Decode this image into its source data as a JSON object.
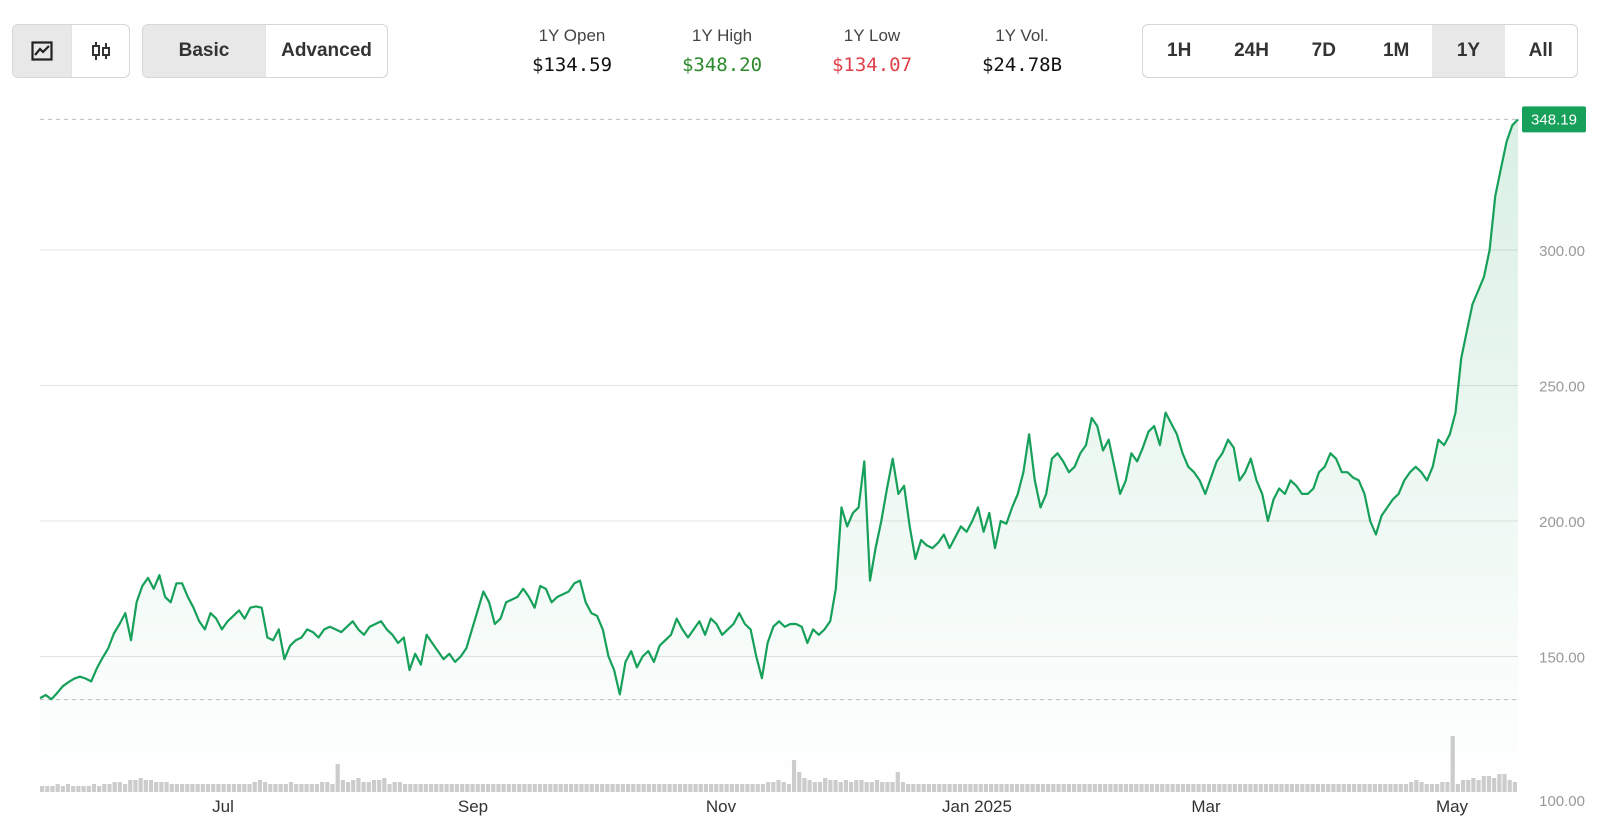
{
  "toolbar": {
    "chart_types": [
      {
        "name": "line-chart",
        "icon": "line-chart-icon",
        "active": true
      },
      {
        "name": "candlestick",
        "icon": "candlestick-icon",
        "active": false
      }
    ],
    "modes": {
      "basic": "Basic",
      "advanced": "Advanced",
      "active": "Basic"
    },
    "ranges": [
      "1H",
      "24H",
      "7D",
      "1M",
      "1Y",
      "All"
    ],
    "active_range": "1Y"
  },
  "stats": {
    "open": {
      "label": "1Y Open",
      "value": "$134.59"
    },
    "high": {
      "label": "1Y High",
      "value": "$348.20",
      "color": "#2a8a2a"
    },
    "low": {
      "label": "1Y Low",
      "value": "$134.07",
      "color": "#e0424a"
    },
    "vol": {
      "label": "1Y Vol.",
      "value": "$24.78B"
    }
  },
  "colors": {
    "line": "#16a05a",
    "area_top": "#16a05a",
    "volume": "#cccccc",
    "grid": "#e3e3e3",
    "price_tag": "#16a05a"
  },
  "chart_data": {
    "type": "line",
    "x_ticks": [
      "Jul",
      "Sep",
      "Nov",
      "Jan 2025",
      "Mar",
      "May"
    ],
    "y_ticks": [
      "100.00",
      "150.00",
      "200.00",
      "250.00",
      "300.00"
    ],
    "ylim": [
      100,
      350
    ],
    "current_price": "348.19",
    "ref_lines": [
      348.2,
      134.07
    ],
    "series": [
      {
        "values": [
          134.6,
          135.8,
          134.2,
          136.5,
          139.0,
          140.5,
          141.8,
          142.6,
          141.9,
          140.8,
          145.6,
          149.5,
          153.0,
          158.5,
          162.0,
          166.0,
          156.0,
          170.0,
          176.0,
          179.0,
          175.0,
          180.0,
          172.0,
          170.0,
          177.0,
          177.0,
          172.0,
          168.0,
          163.0,
          160.0,
          166.0,
          164.0,
          160.0,
          163.0,
          165.0,
          167.0,
          164.0,
          168.0,
          168.5,
          168.0,
          157.0,
          156.0,
          160.0,
          149.0,
          154.0,
          156.0,
          157.0,
          160.0,
          159.0,
          157.0,
          160.0,
          161.0,
          160.0,
          159.0,
          161.0,
          163.0,
          160.0,
          158.0,
          161.0,
          162.0,
          163.0,
          160.0,
          158.0,
          155.0,
          157.0,
          145.0,
          151.0,
          147.0,
          158.0,
          155.0,
          152.0,
          149.0,
          151.0,
          148.0,
          150.0,
          153.0,
          160.0,
          167.0,
          174.0,
          170.0,
          162.0,
          164.0,
          170.0,
          171.0,
          172.0,
          175.0,
          172.0,
          168.0,
          176.0,
          175.0,
          170.0,
          172.0,
          173.0,
          174.0,
          177.0,
          178.0,
          170.0,
          166.0,
          165.0,
          160.0,
          150.0,
          145.0,
          136.0,
          148.0,
          152.0,
          146.0,
          150.0,
          152.0,
          148.0,
          154.0,
          156.0,
          158.0,
          164.0,
          160.0,
          157.0,
          160.0,
          163.0,
          158.0,
          164.0,
          162.0,
          158.0,
          160.0,
          162.0,
          166.0,
          162.0,
          160.0,
          150.0,
          142.0,
          155.0,
          161.0,
          163.0,
          161.0,
          162.0,
          162.0,
          161.0,
          155.0,
          160.0,
          158.0,
          160.0,
          163.0,
          175.0,
          205.0,
          198.0,
          203.0,
          205.0,
          222.0,
          178.0,
          190.0,
          200.0,
          212.0,
          223.0,
          210.0,
          213.0,
          198.0,
          186.0,
          193.0,
          191.0,
          190.0,
          192.0,
          195.0,
          190.0,
          194.0,
          198.0,
          196.0,
          200.0,
          205.0,
          196.0,
          203.0,
          190.0,
          200.0,
          199.0,
          205.0,
          210.0,
          218.0,
          232.0,
          215.0,
          205.0,
          210.0,
          223.0,
          225.0,
          222.0,
          218.0,
          220.0,
          225.0,
          228.0,
          238.0,
          235.0,
          226.0,
          230.0,
          220.0,
          210.0,
          215.0,
          225.0,
          222.0,
          227.0,
          233.0,
          235.0,
          228.0,
          240.0,
          236.0,
          232.0,
          225.0,
          220.0,
          218.0,
          215.0,
          210.0,
          216.0,
          222.0,
          225.0,
          230.0,
          227.0,
          215.0,
          218.0,
          223.0,
          215.0,
          210.0,
          200.0,
          208.0,
          212.0,
          210.0,
          215.0,
          213.0,
          210.0,
          210.0,
          212.0,
          218.0,
          220.0,
          225.0,
          223.0,
          218.0,
          218.0,
          216.0,
          215.0,
          210.0,
          200.0,
          195.0,
          202.0,
          205.0,
          208.0,
          210.0,
          215.0,
          218.0,
          220.0,
          218.0,
          215.0,
          220.0,
          230.0,
          228.0,
          232.0,
          240.0,
          260.0,
          270.0,
          280.0,
          285.0,
          290.0,
          300.0,
          320.0,
          330.0,
          340.0,
          346.0,
          348.2
        ]
      }
    ],
    "volume": [
      3,
      3,
      3,
      4,
      3,
      4,
      3,
      3,
      3,
      3,
      4,
      3,
      4,
      4,
      5,
      5,
      4,
      6,
      6,
      7,
      6,
      6,
      5,
      5,
      5,
      4,
      4,
      4,
      4,
      4,
      4,
      4,
      4,
      4,
      4,
      4,
      4,
      4,
      4,
      4,
      4,
      5,
      6,
      5,
      4,
      4,
      4,
      4,
      5,
      4,
      4,
      4,
      4,
      4,
      5,
      5,
      4,
      14,
      6,
      5,
      6,
      7,
      5,
      5,
      6,
      6,
      7,
      4,
      5,
      5,
      4,
      4,
      4,
      4,
      4,
      4,
      4,
      4,
      4,
      4,
      4,
      4,
      4,
      4,
      4,
      4,
      4,
      4,
      4,
      4,
      4,
      4,
      4,
      4,
      4,
      4,
      4,
      4,
      4,
      4,
      4,
      4,
      4,
      4,
      4,
      4,
      4,
      4,
      4,
      4,
      4,
      4,
      4,
      4,
      4,
      4,
      4,
      4,
      4,
      4,
      4,
      4,
      4,
      4,
      4,
      4,
      4,
      4,
      4,
      4,
      4,
      4,
      4,
      4,
      4,
      4,
      4,
      4,
      4,
      4,
      5,
      5,
      6,
      5,
      4,
      16,
      10,
      7,
      6,
      5,
      5,
      7,
      6,
      6,
      5,
      6,
      5,
      6,
      6,
      5,
      5,
      6,
      5,
      5,
      5,
      10,
      5,
      4,
      4,
      4,
      4,
      4,
      4,
      4,
      4,
      4,
      4,
      4,
      4,
      4,
      4,
      4,
      4,
      4,
      4,
      4,
      4,
      4,
      4,
      4,
      4,
      4,
      4,
      4,
      4,
      4,
      4,
      4,
      4,
      4,
      4,
      4,
      4,
      4,
      4,
      4,
      4,
      4,
      4,
      4,
      4,
      4,
      4,
      4,
      4,
      4,
      4,
      4,
      4,
      4,
      4,
      4,
      4,
      4,
      4,
      4,
      4,
      4,
      4,
      4,
      4,
      4,
      4,
      4,
      4,
      4,
      4,
      4,
      4,
      4,
      4,
      4,
      4,
      4,
      4,
      4,
      4,
      4,
      4,
      4,
      4,
      4,
      4,
      4,
      4,
      4,
      4,
      4,
      4,
      4,
      4,
      4,
      4,
      4,
      5,
      6,
      5,
      4,
      4,
      4,
      5,
      5,
      28,
      4,
      6,
      6,
      7,
      6,
      8,
      8,
      7,
      9,
      9,
      6,
      5
    ]
  }
}
